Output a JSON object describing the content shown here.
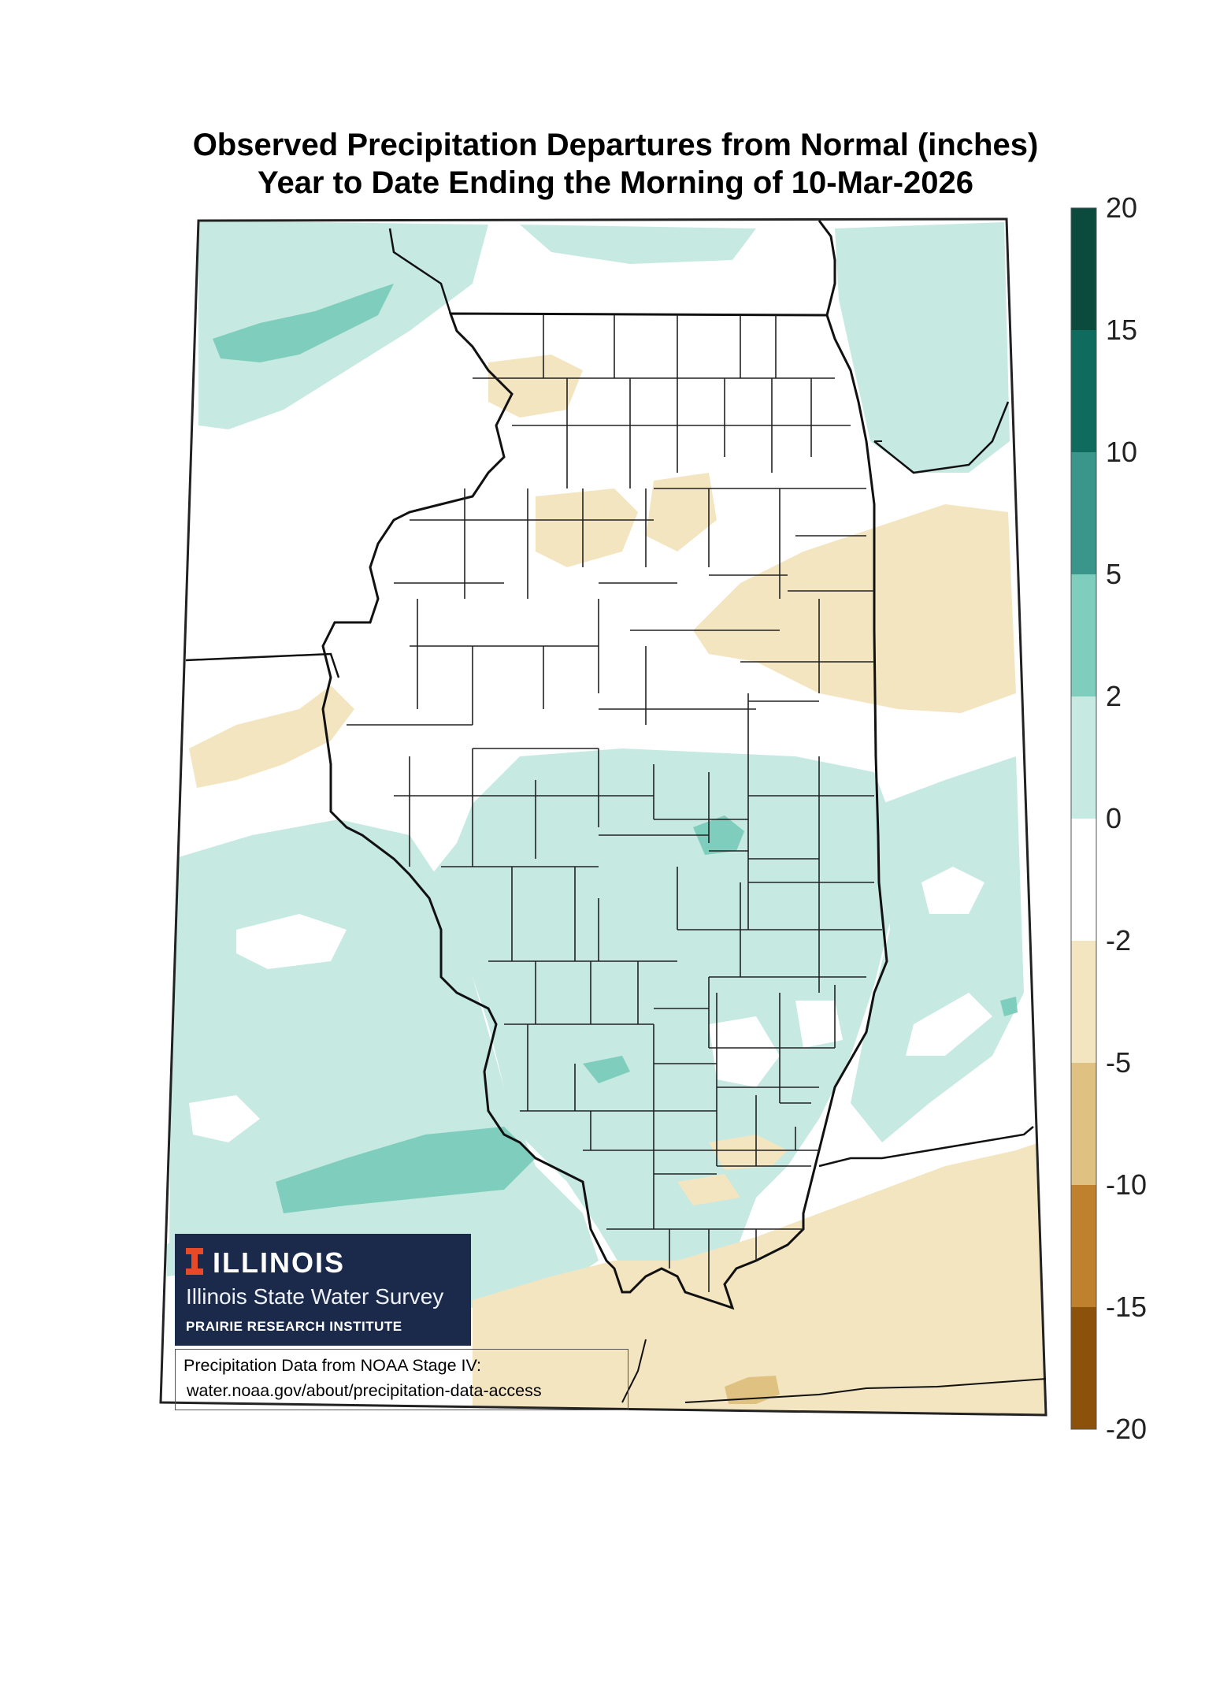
{
  "title": {
    "line1": "Observed Precipitation Departures from Normal (inches)",
    "line2": "Year to Date Ending the Morning of 10-Mar-2026"
  },
  "colorbar": {
    "tick_labels": [
      "20",
      "15",
      "10",
      "5",
      "2",
      "0",
      "-2",
      "-5",
      "-10",
      "-15",
      "-20"
    ],
    "bins": [
      {
        "range": "15 to 20",
        "color": "#0b4b3e"
      },
      {
        "range": "10 to 15",
        "color": "#0f6b5e"
      },
      {
        "range": "5 to 10",
        "color": "#3a958b"
      },
      {
        "range": "2 to 5",
        "color": "#7fcdbd"
      },
      {
        "range": "0 to 2",
        "color": "#c6e9e2"
      },
      {
        "range": "-2 to 0",
        "color": "#ffffff"
      },
      {
        "range": "-5 to -2",
        "color": "#f4e5c1"
      },
      {
        "range": "-10 to -5",
        "color": "#dfc281"
      },
      {
        "range": "-15 to -10",
        "color": "#bf812d"
      },
      {
        "range": "-20 to -15",
        "color": "#8c510a"
      }
    ]
  },
  "logo": {
    "wordmark": "ILLINOIS",
    "agency": "Illinois State Water Survey",
    "institute": "PRAIRIE RESEARCH INSTITUTE",
    "box_color": "#1b2a4a",
    "accent_color": "#e84a27"
  },
  "source": {
    "line1": "Precipitation Data from NOAA Stage IV:",
    "line2": "water.noaa.gov/about/precipitation-data-access"
  }
}
